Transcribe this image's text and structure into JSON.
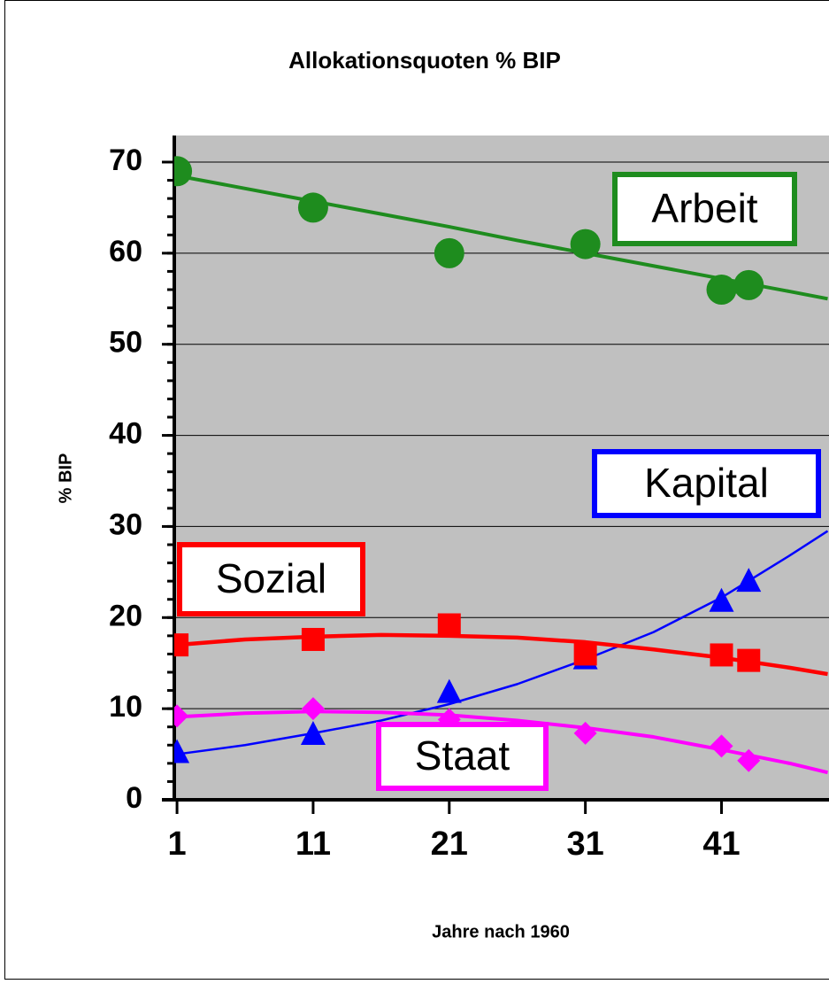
{
  "chart_data": {
    "type": "scatter",
    "title": "Allokationsquoten % BIP",
    "xlabel": "Jahre nach 1960",
    "ylabel": "% BIP",
    "xlim": [
      0.8,
      48.8
    ],
    "ylim": [
      0,
      70
    ],
    "xticks": [
      1,
      11,
      21,
      31,
      41
    ],
    "yticks": [
      0,
      10,
      20,
      30,
      40,
      50,
      60,
      70
    ],
    "grid": true,
    "series": [
      {
        "name": "Arbeit",
        "color": "#1e8c1e",
        "marker": "circle",
        "x": [
          1,
          11,
          21,
          31,
          41,
          43
        ],
        "values": [
          69,
          65,
          60,
          61,
          56,
          56.5
        ],
        "trend_x": [
          1,
          6,
          11,
          16,
          21,
          26,
          31,
          36,
          41,
          46,
          48.8
        ],
        "trend_values": [
          68.5,
          67.1,
          65.7,
          64.3,
          62.9,
          61.4,
          60.0,
          58.6,
          57.2,
          55.8,
          55.0
        ]
      },
      {
        "name": "Kapital",
        "color": "#0000ff",
        "marker": "triangle",
        "x": [
          1,
          11,
          21,
          31,
          41,
          43
        ],
        "values": [
          5.2,
          7.2,
          11.8,
          15.5,
          21.8,
          24
        ],
        "trend_x": [
          1,
          6,
          11,
          16,
          21,
          26,
          31,
          36,
          41,
          46,
          48.8
        ],
        "trend_values": [
          5.0,
          6.0,
          7.3,
          8.7,
          10.5,
          12.7,
          15.4,
          18.4,
          22.2,
          26.8,
          29.5
        ]
      },
      {
        "name": "Sozial",
        "color": "#ff0000",
        "marker": "square",
        "x": [
          1,
          11,
          21,
          31,
          41,
          43
        ],
        "values": [
          17,
          17.6,
          19.2,
          16,
          15.9,
          15.3
        ],
        "trend_x": [
          1,
          6,
          11,
          16,
          21,
          26,
          31,
          36,
          41,
          46,
          48.8
        ],
        "trend_values": [
          17.0,
          17.6,
          17.9,
          18.1,
          18.0,
          17.8,
          17.3,
          16.5,
          15.6,
          14.5,
          13.8
        ]
      },
      {
        "name": "Staat",
        "color": "#ff00ff",
        "marker": "diamond",
        "x": [
          1,
          11,
          21,
          31,
          41,
          43
        ],
        "values": [
          9.2,
          10,
          8.8,
          7.3,
          5.9,
          4.3
        ],
        "trend_x": [
          1,
          6,
          11,
          16,
          21,
          26,
          31,
          36,
          41,
          46,
          48.8
        ],
        "trend_values": [
          9.1,
          9.5,
          9.7,
          9.6,
          9.3,
          8.7,
          7.9,
          6.9,
          5.5,
          4.0,
          3.0
        ]
      }
    ]
  }
}
